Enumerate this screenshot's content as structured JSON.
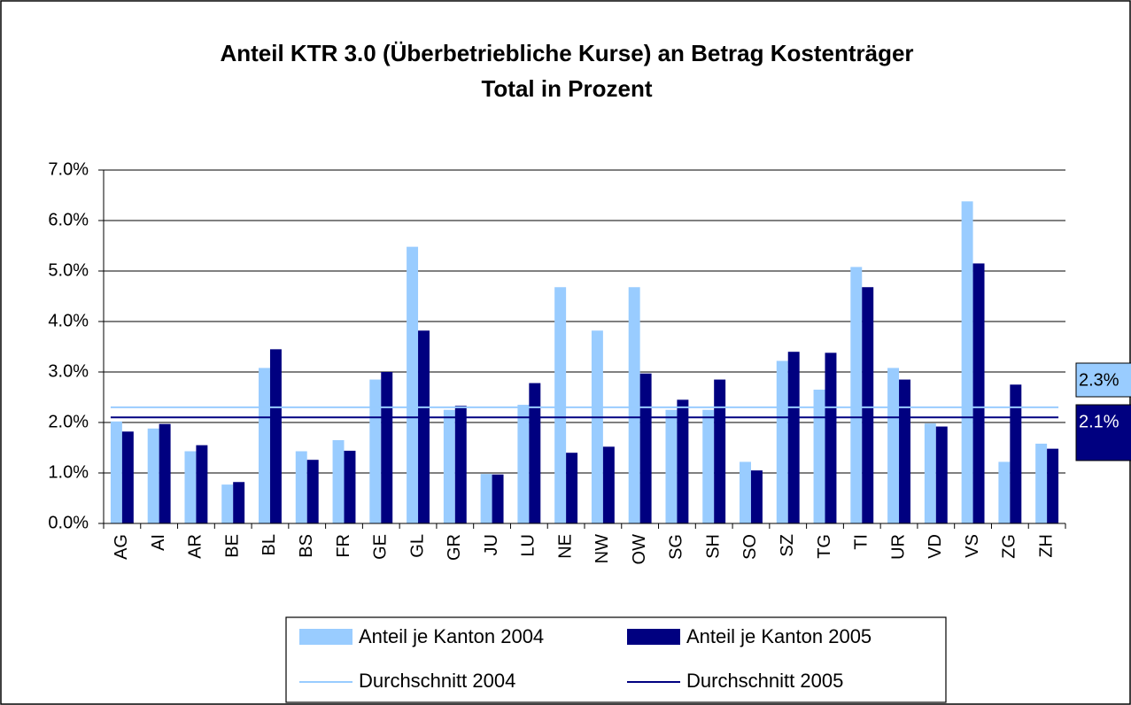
{
  "chart_data": {
    "type": "bar",
    "title": [
      "Anteil KTR 3.0 (Überbetriebliche Kurse) an Betrag Kostenträger",
      "Total in Prozent"
    ],
    "categories": [
      "AG",
      "AI",
      "AR",
      "BE",
      "BL",
      "BS",
      "FR",
      "GE",
      "GL",
      "GR",
      "JU",
      "LU",
      "NE",
      "NW",
      "OW",
      "SG",
      "SH",
      "SO",
      "SZ",
      "TG",
      "TI",
      "UR",
      "VD",
      "VS",
      "ZG",
      "ZH"
    ],
    "series": [
      {
        "name": "Anteil je Kanton 2004",
        "color": "#99ccff",
        "values": [
          2.02,
          1.88,
          1.43,
          0.77,
          3.08,
          1.43,
          1.65,
          2.85,
          5.48,
          2.25,
          0.98,
          2.35,
          4.68,
          3.82,
          4.68,
          2.25,
          2.25,
          1.22,
          3.22,
          2.65,
          5.08,
          3.08,
          1.98,
          6.38,
          1.22,
          1.58
        ]
      },
      {
        "name": "Anteil je Kanton 2005",
        "color": "#000080",
        "values": [
          1.82,
          1.97,
          1.55,
          0.82,
          3.45,
          1.26,
          1.44,
          3.0,
          3.82,
          2.33,
          0.97,
          2.78,
          1.4,
          1.52,
          2.97,
          2.45,
          2.85,
          1.05,
          3.4,
          3.38,
          4.68,
          2.85,
          1.92,
          5.15,
          2.75,
          1.48
        ]
      }
    ],
    "averages": [
      {
        "name": "Durchschnitt 2004",
        "color": "#99ccff",
        "value": 2.3,
        "value_label": "2.3%"
      },
      {
        "name": "Durchschnitt 2005",
        "color": "#000080",
        "value": 2.1,
        "value_label": "2.1%"
      }
    ],
    "ylim": [
      0,
      7
    ],
    "yticks": [
      {
        "value": 0,
        "label": "0.0%"
      },
      {
        "value": 1,
        "label": "1.0%"
      },
      {
        "value": 2,
        "label": "2.0%"
      },
      {
        "value": 3,
        "label": "3.0%"
      },
      {
        "value": 4,
        "label": "4.0%"
      },
      {
        "value": 5,
        "label": "5.0%"
      },
      {
        "value": 6,
        "label": "6.0%"
      },
      {
        "value": 7,
        "label": "7.0%"
      }
    ],
    "grid": true,
    "legend": "bottom"
  }
}
